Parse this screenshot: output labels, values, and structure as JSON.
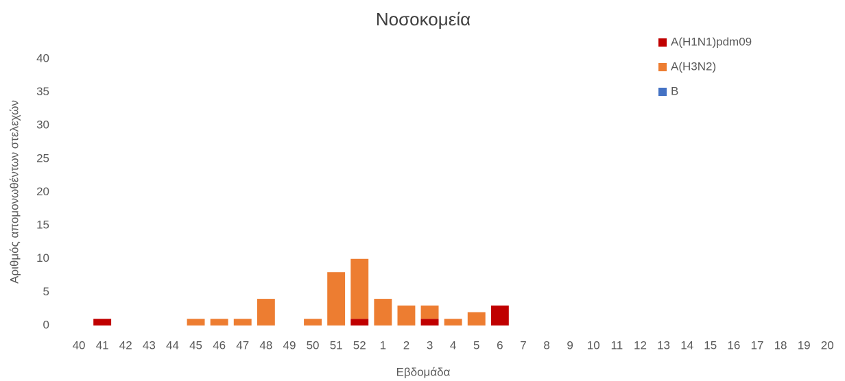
{
  "chart_data": {
    "type": "stacked_bar",
    "title": "Νοσοκομεία",
    "x_label": "Εβδομάδα",
    "y_label": "Αριθμός απομονωθέντων στελεχών",
    "categories": [
      "40",
      "41",
      "42",
      "43",
      "44",
      "45",
      "46",
      "47",
      "48",
      "49",
      "50",
      "51",
      "52",
      "1",
      "2",
      "3",
      "4",
      "5",
      "6",
      "7",
      "8",
      "9",
      "10",
      "11",
      "12",
      "13",
      "14",
      "15",
      "16",
      "17",
      "18",
      "19",
      "20"
    ],
    "series": [
      {
        "name": "A(H1N1)pdm09",
        "color": "#c00000",
        "values": [
          0,
          1,
          0,
          0,
          0,
          0,
          0,
          0,
          0,
          0,
          0,
          0,
          1,
          0,
          0,
          1,
          0,
          0,
          3,
          0,
          0,
          0,
          0,
          0,
          0,
          0,
          0,
          0,
          0,
          0,
          0,
          0,
          0
        ]
      },
      {
        "name": "A(H3N2)",
        "color": "#ed7d31",
        "values": [
          0,
          0,
          0,
          0,
          0,
          1,
          1,
          1,
          4,
          0,
          1,
          8,
          9,
          4,
          3,
          2,
          1,
          2,
          0,
          0,
          0,
          0,
          0,
          0,
          0,
          0,
          0,
          0,
          0,
          0,
          0,
          0,
          0
        ]
      },
      {
        "name": "B",
        "color": "#4472c4",
        "values": [
          0,
          0,
          0,
          0,
          0,
          0,
          0,
          0,
          0,
          0,
          0,
          0,
          0,
          0,
          0,
          0,
          0,
          0,
          0,
          0,
          0,
          0,
          0,
          0,
          0,
          0,
          0,
          0,
          0,
          0,
          0,
          0,
          0
        ]
      }
    ],
    "ylim": [
      0,
      40
    ],
    "yticks": [
      0,
      5,
      10,
      15,
      20,
      25,
      30,
      35,
      40
    ],
    "grid": false,
    "legend": "top-right"
  }
}
